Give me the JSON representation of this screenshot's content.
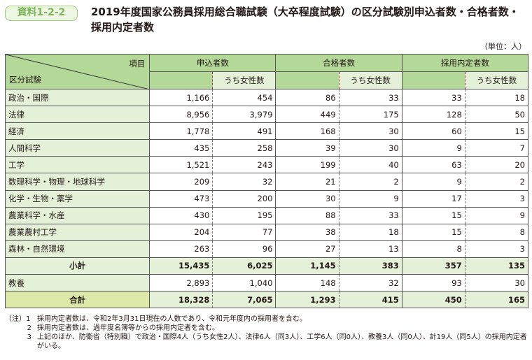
{
  "badge": "資料1-2-2",
  "title": "2019年度国家公務員採用総合職試験（大卒程度試験）の区分試験別申込者数・合格者数・採用内定者数",
  "unit": "（単位：人）",
  "header": {
    "item": "項目",
    "category": "区分試験",
    "applicants": "申込者数",
    "passers": "合格者数",
    "offers": "採用内定者数",
    "female": "うち女性数"
  },
  "rows": [
    [
      "政治・国際",
      "1,166",
      "454",
      "86",
      "33",
      "33",
      "18"
    ],
    [
      "法律",
      "8,956",
      "3,979",
      "449",
      "175",
      "128",
      "50"
    ],
    [
      "経済",
      "1,778",
      "491",
      "168",
      "30",
      "60",
      "15"
    ],
    [
      "人間科学",
      "435",
      "258",
      "39",
      "30",
      "9",
      "7"
    ],
    [
      "工学",
      "1,521",
      "243",
      "199",
      "40",
      "63",
      "20"
    ],
    [
      "数理科学・物理・地球科学",
      "209",
      "32",
      "21",
      "2",
      "9",
      "2"
    ],
    [
      "化学・生物・薬学",
      "473",
      "200",
      "30",
      "9",
      "17",
      "3"
    ],
    [
      "農業科学・水産",
      "430",
      "195",
      "88",
      "33",
      "15",
      "9"
    ],
    [
      "農業農村工学",
      "204",
      "77",
      "38",
      "18",
      "15",
      "8"
    ],
    [
      "森林・自然環境",
      "263",
      "96",
      "27",
      "13",
      "8",
      "3"
    ]
  ],
  "subtotal": [
    "小計",
    "15,435",
    "6,025",
    "1,145",
    "383",
    "357",
    "135"
  ],
  "liberal": [
    "教養",
    "2,893",
    "1,040",
    "148",
    "32",
    "93",
    "30"
  ],
  "total": [
    "合計",
    "18,328",
    "7,065",
    "1,293",
    "415",
    "450",
    "165"
  ],
  "notes": [
    {
      "k": "（注）1",
      "t": "採用内定者数は、令和2年3月31日現在の人数であり、令和元年度内の採用者を含む。"
    },
    {
      "k": "2",
      "t": "採用内定者数は、過年度名簿等からの採用内定者を含む。"
    },
    {
      "k": "3",
      "t": "上記のほか、防衛省（特別職）で政治・国際4人（うち女性2人）、法律6人（同3人）、工学6人（同0人）、教養3人（同0人）、計19人（同5人）の採用内定者がいる。"
    }
  ]
}
